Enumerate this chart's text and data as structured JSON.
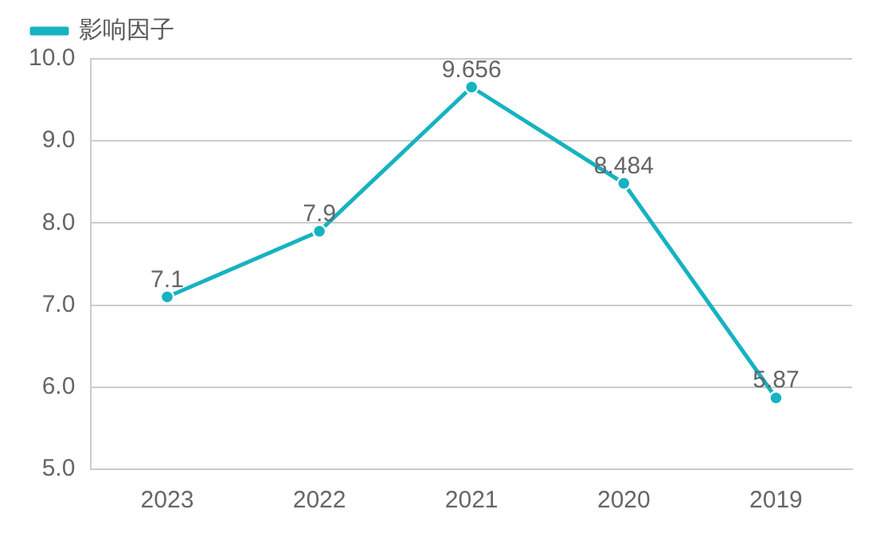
{
  "chart_data": {
    "type": "line",
    "categories": [
      "2023",
      "2022",
      "2021",
      "2020",
      "2019"
    ],
    "series": [
      {
        "name": "影响因子",
        "color": "#17b2c0",
        "values": [
          7.1,
          7.9,
          9.656,
          8.484,
          5.87
        ]
      }
    ],
    "ylim": [
      5,
      10
    ],
    "yticks": [
      {
        "value": 5,
        "label": "5.0"
      },
      {
        "value": 6,
        "label": "6.0"
      },
      {
        "value": 7,
        "label": "7.0"
      },
      {
        "value": 8,
        "label": "8.0"
      },
      {
        "value": 9,
        "label": "9.0"
      },
      {
        "value": 10,
        "label": "10.0"
      }
    ],
    "grid": "y",
    "legend": "top left",
    "marker": "circle",
    "line_style": "solid",
    "data_labels": true
  }
}
